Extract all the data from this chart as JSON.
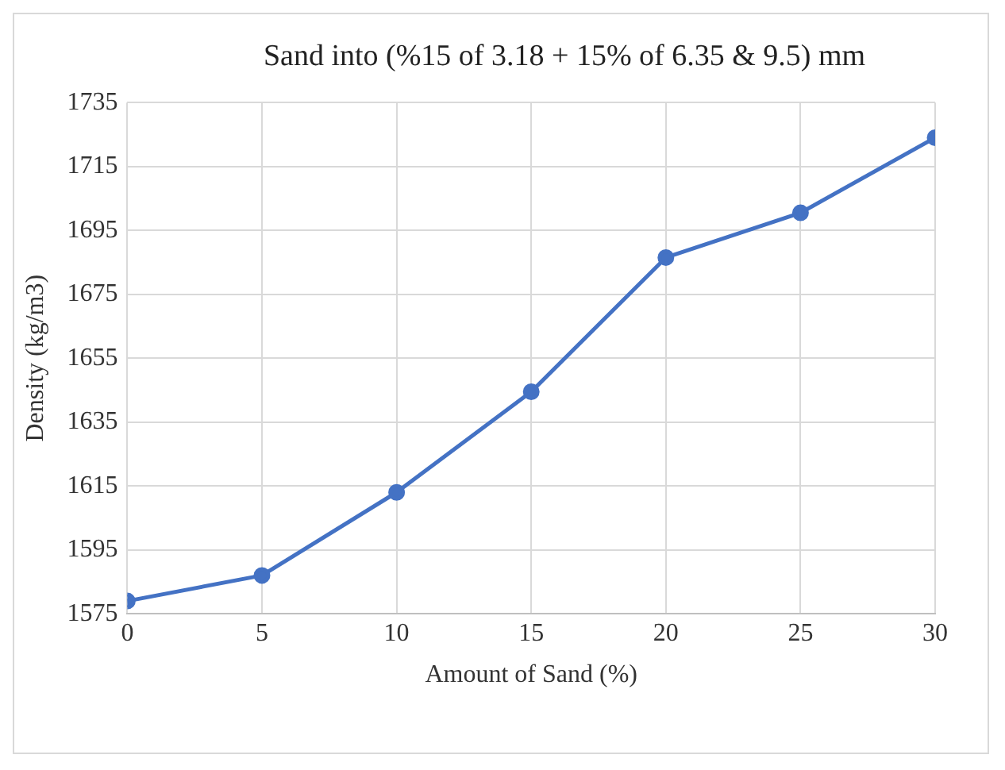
{
  "chart_data": {
    "type": "line",
    "title": "Sand into (%15 of 3.18 + 15% of 6.35 & 9.5) mm",
    "xlabel": "Amount of Sand (%)",
    "ylabel": "Density (kg/m3)",
    "x": [
      0,
      5,
      10,
      15,
      20,
      25,
      30
    ],
    "series": [
      {
        "color": "#4472c4",
        "values": [
          1579,
          1587,
          1613,
          1644.5,
          1686.5,
          1700.5,
          1724
        ]
      }
    ],
    "xlim": [
      0,
      30
    ],
    "xticks": [
      0,
      5,
      10,
      15,
      20,
      25,
      30
    ],
    "ylim": [
      1575,
      1735
    ],
    "yticks": [
      1575,
      1595,
      1615,
      1635,
      1655,
      1675,
      1695,
      1715,
      1735
    ],
    "grid": true,
    "marker": "circle",
    "line_style": "solid"
  }
}
